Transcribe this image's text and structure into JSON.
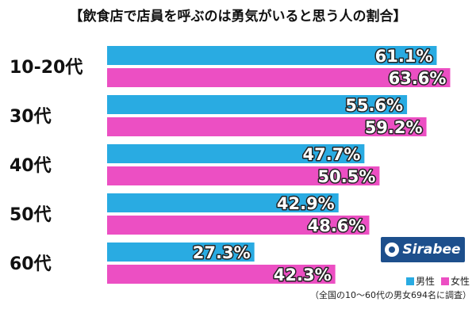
{
  "chart_data": {
    "type": "bar",
    "orientation": "horizontal",
    "title": "【飲食店で店員を呼ぶのは勇気がいると思う人の割合】",
    "categories": [
      "10-20代",
      "30代",
      "40代",
      "50代",
      "60代"
    ],
    "series": [
      {
        "name": "男性",
        "color": "#29abe2",
        "values": [
          61.1,
          55.6,
          47.7,
          42.9,
          27.3
        ],
        "labels": [
          "61.1%",
          "55.6%",
          "47.7%",
          "42.9%",
          "27.3%"
        ]
      },
      {
        "name": "女性",
        "color": "#ec4fc3",
        "values": [
          63.6,
          59.2,
          50.5,
          48.6,
          42.3
        ],
        "labels": [
          "63.6%",
          "59.2%",
          "50.5%",
          "48.6%",
          "42.3%"
        ]
      }
    ],
    "xlim": [
      0,
      100
    ],
    "grid": false,
    "legend_position": "bottom-right",
    "footnote": "（全国の10〜60代の男女694名に調査）"
  },
  "logo_text": "Sirabee"
}
